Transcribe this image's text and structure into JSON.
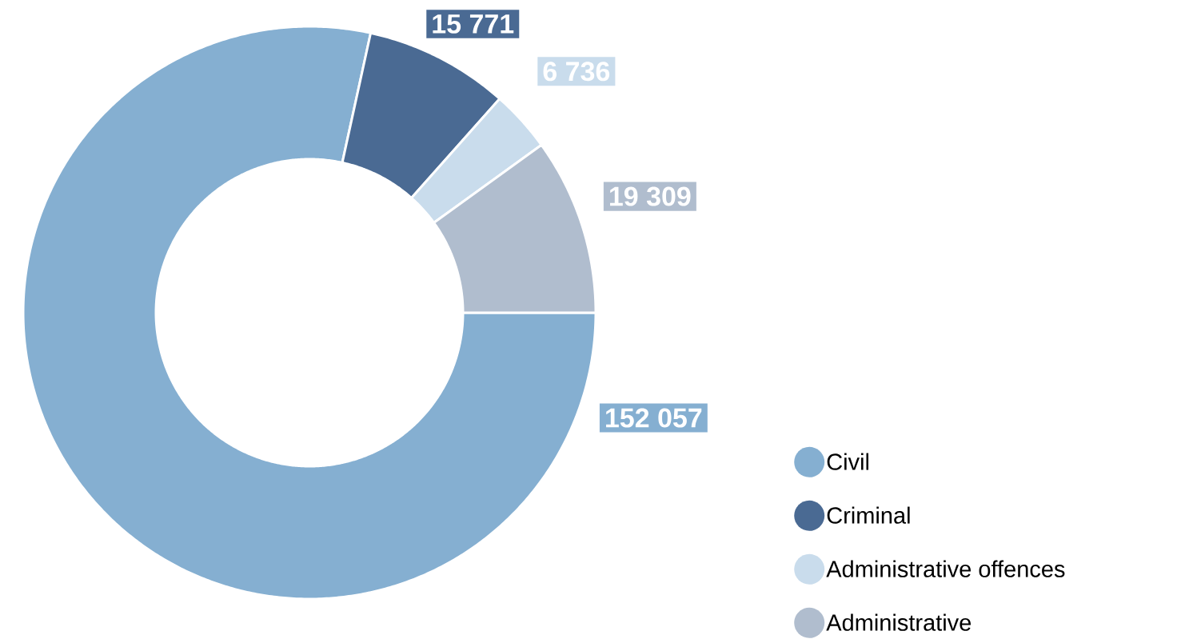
{
  "chart_data": {
    "type": "donut",
    "categories": [
      "Civil",
      "Criminal",
      "Administrative offences",
      "Administrative"
    ],
    "values": [
      152057,
      15771,
      6736,
      19309
    ],
    "value_labels": [
      "152 057",
      "15 771",
      "6 736",
      "19 309"
    ],
    "colors": [
      "#85afd1",
      "#4a6a93",
      "#c9dcec",
      "#b0bdce"
    ],
    "legend": "bottom right"
  }
}
